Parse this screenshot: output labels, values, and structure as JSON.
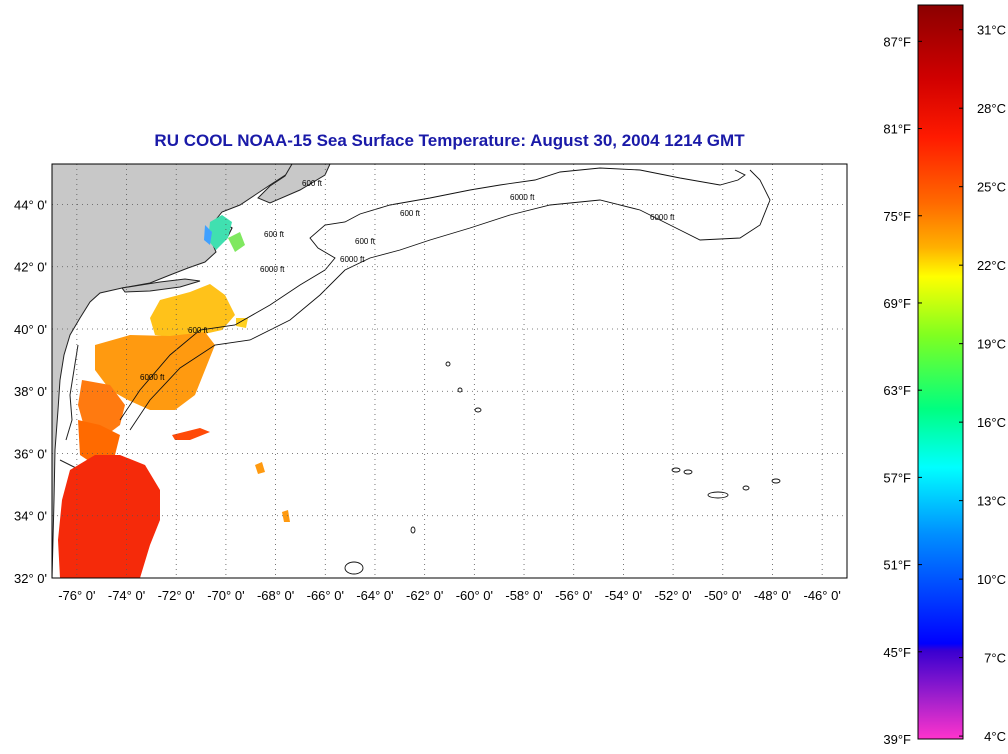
{
  "title": "RU COOL  NOAA-15  Sea Surface Temperature:  August 30, 2004 1214 GMT",
  "map": {
    "lon_range": [
      -77,
      -45
    ],
    "lat_range": [
      32,
      45.3
    ],
    "lon_ticks": [
      "-76° 0'",
      "-74° 0'",
      "-72° 0'",
      "-70° 0'",
      "-68° 0'",
      "-66° 0'",
      "-64° 0'",
      "-62° 0'",
      "-60° 0'",
      "-58° 0'",
      "-56° 0'",
      "-54° 0'",
      "-52° 0'",
      "-50° 0'",
      "-48° 0'",
      "-46° 0'"
    ],
    "lat_ticks": [
      "32° 0'",
      "34° 0'",
      "36° 0'",
      "38° 0'",
      "40° 0'",
      "42° 0'",
      "44° 0'"
    ],
    "grid": "dotted",
    "contour_labels": [
      "600 ft",
      "6000 ft"
    ],
    "land_color": "#c8c8c8",
    "no_data_color": "#ffffff"
  },
  "colorbar": {
    "fahrenheit": [
      "87°F",
      "81°F",
      "75°F",
      "69°F",
      "63°F",
      "57°F",
      "51°F",
      "45°F",
      "39°F"
    ],
    "celsius": [
      "31°C",
      "28°C",
      "25°C",
      "22°C",
      "19°C",
      "16°C",
      "13°C",
      "10°C",
      "7°C",
      "4°C"
    ],
    "colors_top_to_bottom": [
      "#8b0000",
      "#ff0000",
      "#ff6a00",
      "#ffb000",
      "#ffff00",
      "#80ff20",
      "#00ff80",
      "#00ffff",
      "#0090ff",
      "#0000ff",
      "#6600cc",
      "#ff33cc"
    ]
  }
}
